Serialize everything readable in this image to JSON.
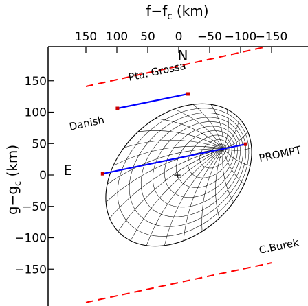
{
  "chart_data": {
    "type": "scatter",
    "title": "",
    "xlabel": "f−f",
    "xlabel_sub": "c",
    "xlabel_unit": " (km)",
    "ylabel": "g−g",
    "ylabel_sub": "c",
    "ylabel_unit": " (km)",
    "x_ticks": [
      150,
      100,
      50,
      0,
      -50,
      -100,
      -150
    ],
    "x_tick_labels": [
      "150",
      "100",
      "50",
      "0",
      "−50",
      "−100",
      "−150"
    ],
    "y_ticks": [
      150,
      100,
      50,
      0,
      -50,
      -100,
      -150
    ],
    "y_tick_labels": [
      "150",
      "100",
      "50",
      "0",
      "−50",
      "−100",
      "−150"
    ],
    "xlim": [
      182,
      -188
    ],
    "ylim": [
      -205,
      205
    ],
    "x_inverted": true,
    "direction_labels": {
      "north": "N",
      "east": "E"
    },
    "center_marker": {
      "x": 0,
      "y": 0,
      "symbol": "+"
    },
    "ellipsoid": {
      "center": [
        0,
        0
      ],
      "semi_major_km": 134,
      "semi_minor_km": 96,
      "tilt_deg": -43,
      "pole": [
        -72,
        42
      ]
    },
    "chords": [
      {
        "name": "Danish",
        "color": "#0000ff",
        "x": [
          99,
          -15
        ],
        "y": [
          106,
          129
        ]
      },
      {
        "name": "PROMPT",
        "color": "#0000ff",
        "x": [
          123,
          -108
        ],
        "y": [
          2,
          49
        ]
      }
    ],
    "chord_endpoint_color": "#cc0000",
    "limit_lines": [
      {
        "name": "Pta. Grossa",
        "color": "#ff0000",
        "style": "dashed",
        "x": [
          150,
          -150
        ],
        "y": [
          141,
          206
        ]
      },
      {
        "name": "C.Burek",
        "color": "#ff0000",
        "style": "dashed",
        "x": [
          150,
          -150
        ],
        "y": [
          -203,
          -140
        ]
      }
    ],
    "labels": [
      "Danish",
      "PROMPT",
      "Pta. Grossa",
      "C.Burek"
    ]
  }
}
